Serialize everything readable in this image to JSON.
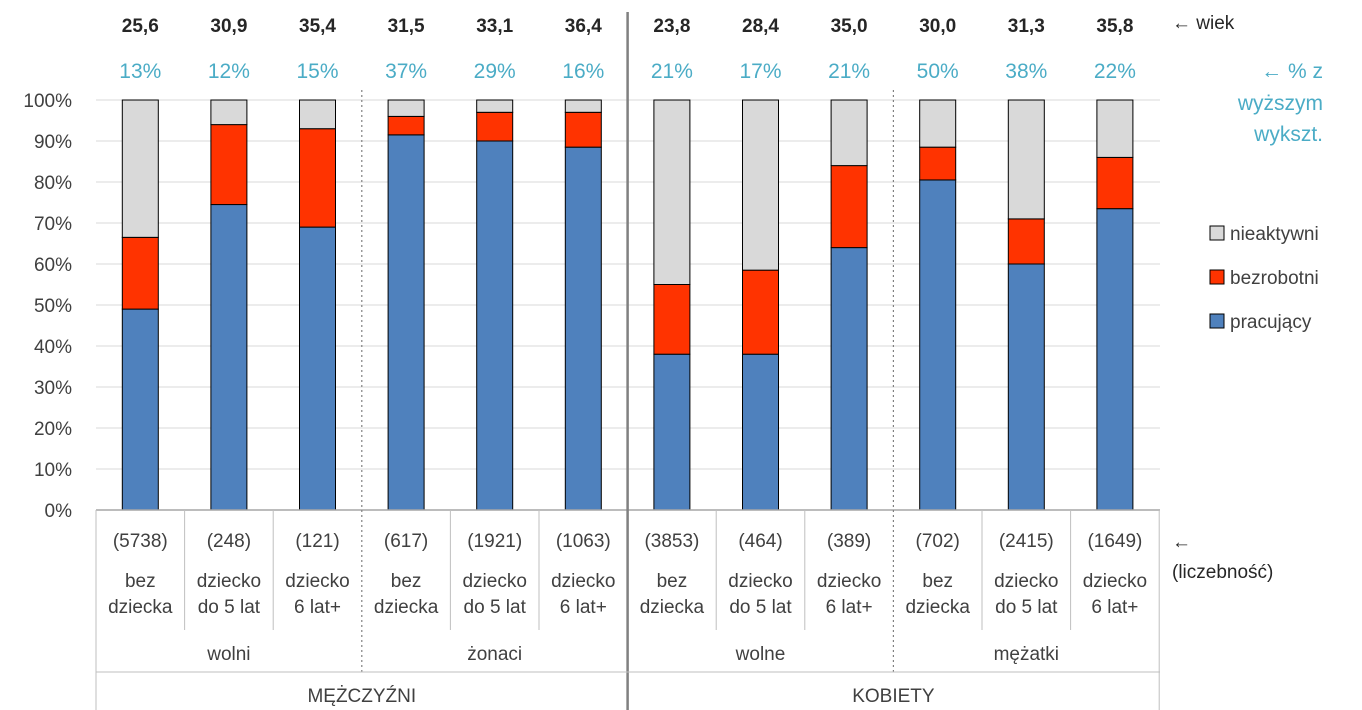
{
  "chart_data": {
    "type": "bar",
    "stacked": true,
    "ylim": [
      0,
      100
    ],
    "y_ticks": [
      "0%",
      "10%",
      "20%",
      "30%",
      "40%",
      "50%",
      "60%",
      "70%",
      "80%",
      "90%",
      "100%"
    ],
    "grid": true,
    "legend_position": "right",
    "categories": [
      [
        "bez",
        "dziecka"
      ],
      [
        "dziecko",
        "do 5 lat"
      ],
      [
        "dziecko",
        "6 lat+"
      ],
      [
        "bez",
        "dziecka"
      ],
      [
        "dziecko",
        "do 5 lat"
      ],
      [
        "dziecko",
        "6 lat+"
      ],
      [
        "bez",
        "dziecka"
      ],
      [
        "dziecko",
        "do 5 lat"
      ],
      [
        "dziecko",
        "6 lat+"
      ],
      [
        "bez",
        "dziecka"
      ],
      [
        "dziecko",
        "do 5 lat"
      ],
      [
        "dziecko",
        "6 lat+"
      ]
    ],
    "counts": [
      "(5738)",
      "(248)",
      "(121)",
      "(617)",
      "(1921)",
      "(1063)",
      "(3853)",
      "(464)",
      "(389)",
      "(702)",
      "(2415)",
      "(1649)"
    ],
    "age": [
      "25,6",
      "30,9",
      "35,4",
      "31,5",
      "33,1",
      "36,4",
      "23,8",
      "28,4",
      "35,0",
      "30,0",
      "31,3",
      "35,8"
    ],
    "higher_education": [
      "13%",
      "12%",
      "15%",
      "37%",
      "29%",
      "16%",
      "21%",
      "17%",
      "21%",
      "50%",
      "38%",
      "22%"
    ],
    "groups": [
      "wolni",
      "żonaci",
      "wolne",
      "mężatki"
    ],
    "sexes": [
      "MĘŻCZYŹNI",
      "KOBIETY"
    ],
    "series": [
      {
        "name": "pracujący",
        "color": "#4f81bd",
        "values": [
          49,
          74.5,
          69,
          91.5,
          90,
          88.5,
          38,
          38,
          64,
          80.5,
          60,
          73.5
        ]
      },
      {
        "name": "bezrobotni",
        "color": "#ff3300",
        "values": [
          17.5,
          19.5,
          24,
          4.5,
          7,
          8.5,
          17,
          20.5,
          20,
          8,
          11,
          12.5
        ]
      },
      {
        "name": "nieaktywni",
        "color": "#d9d9d9",
        "values": [
          33.5,
          6,
          7,
          4,
          3,
          3,
          45,
          41.5,
          16,
          11.5,
          29,
          14
        ]
      }
    ],
    "notes": {
      "age": "← wiek",
      "education": [
        "← % z",
        "wyższym",
        "wykszt."
      ],
      "count": [
        "←",
        "(liczebność)"
      ]
    }
  }
}
